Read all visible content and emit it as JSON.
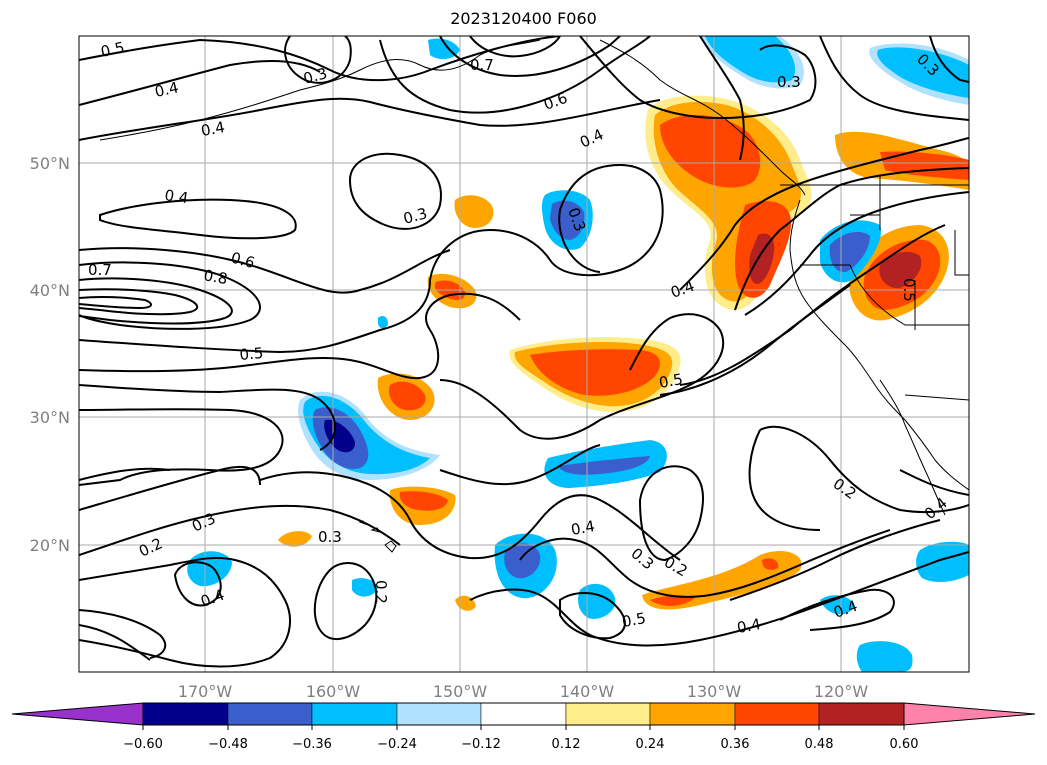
{
  "title": "2023120400 F060",
  "lat_labels": [
    "50°N",
    "40°N",
    "30°N",
    "20°N"
  ],
  "lon_labels": [
    "170°W",
    "160°W",
    "150°W",
    "140°W",
    "130°W",
    "120°W"
  ],
  "colorbar": {
    "labels": [
      "−0.60",
      "−0.48",
      "−0.36",
      "−0.24",
      "−0.12",
      "0.12",
      "0.24",
      "0.36",
      "0.48",
      "0.60"
    ],
    "colors": [
      "#9932cc",
      "#00008b",
      "#3a5fcd",
      "#00bfff",
      "#b0e2ff",
      "#ffffff",
      "#ffec8b",
      "#ffa500",
      "#ff4500",
      "#b22222",
      "#ff82ab"
    ]
  },
  "contour_labels": [
    "0.5",
    "0.4",
    "0.3",
    "0.7",
    "0.6",
    "0.4",
    "0.3",
    "0.4",
    "0.4",
    "0.3",
    "0.8",
    "0.7",
    "0.6",
    "0.5",
    "0.4",
    "0.5",
    "0.3",
    "0.2",
    "0.3",
    "0.4",
    "0.2",
    "0.3",
    "0.4",
    "0.2",
    "0.5",
    "0.4",
    "0.2",
    "0.4",
    "0.3",
    "0.3",
    "0.5",
    "0.4"
  ],
  "fills": {
    "negative": "#00bfff",
    "negative_light": "#b0e2ff",
    "negative_strong": "#3a5fcd",
    "negative_max": "#00008b",
    "positive_light": "#ffec8b",
    "positive": "#ffa500",
    "positive_strong": "#ff4500",
    "positive_max": "#b22222"
  }
}
